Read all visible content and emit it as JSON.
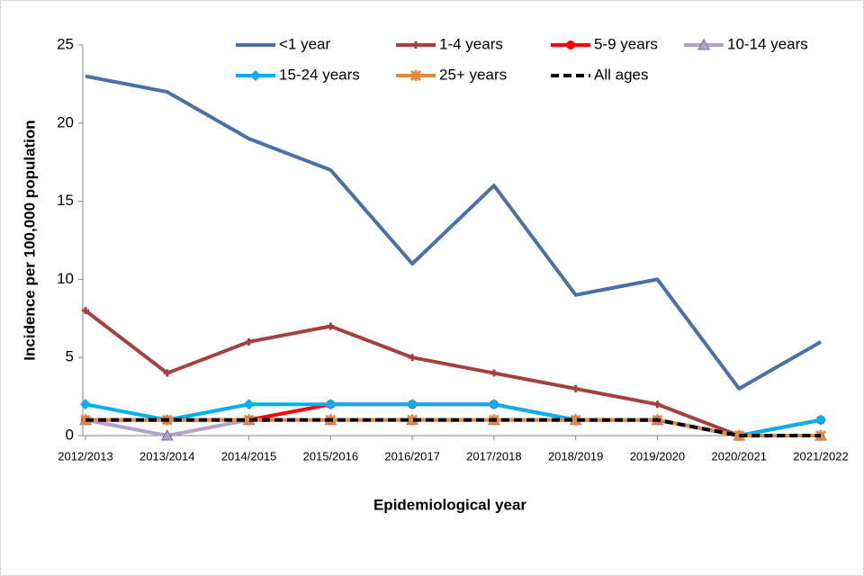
{
  "chart_data": {
    "type": "line",
    "x_label": "Epidemiological  year",
    "y_label": "Incidence per 100,000 population",
    "categories": [
      "2012/2013",
      "2013/2014",
      "2014/2015",
      "2015/2016",
      "2016/2017",
      "2017/2018",
      "2018/2019",
      "2019/2020",
      "2020/2021",
      "2021/2022"
    ],
    "ylim": [
      0,
      25
    ],
    "yticks": [
      0,
      5,
      10,
      15,
      20,
      25
    ],
    "series": [
      {
        "name": "<1 year",
        "color": "#4a70a8",
        "marker": "none",
        "values": [
          23,
          22,
          19,
          17,
          11,
          16,
          9,
          10,
          3,
          6
        ]
      },
      {
        "name": "1-4 years",
        "color": "#a5403f",
        "marker": "dash",
        "values": [
          8,
          4,
          6,
          7,
          5,
          4,
          3,
          2,
          0,
          0
        ]
      },
      {
        "name": "5-9 years",
        "color": "#ff0000",
        "marker": "circle",
        "values": [
          1,
          1,
          1,
          2,
          2,
          2,
          1,
          1,
          0,
          1
        ]
      },
      {
        "name": "10-14 years",
        "color": "#b3a2c7",
        "marker": "triangle",
        "values": [
          1,
          0,
          1,
          1,
          1,
          1,
          1,
          1,
          0,
          0
        ]
      },
      {
        "name": "15-24 years",
        "color": "#00b0f0",
        "marker": "diamond",
        "values": [
          2,
          1,
          2,
          2,
          2,
          2,
          1,
          1,
          0,
          1
        ]
      },
      {
        "name": "25+ years",
        "color": "#e3893f",
        "marker": "x",
        "values": [
          1,
          1,
          1,
          1,
          1,
          1,
          1,
          1,
          0,
          0
        ]
      },
      {
        "name": "All ages",
        "color": "#000000",
        "marker": "none",
        "dashed": true,
        "values": [
          1,
          1,
          1,
          1,
          1,
          1,
          1,
          1,
          0,
          0
        ]
      }
    ]
  }
}
